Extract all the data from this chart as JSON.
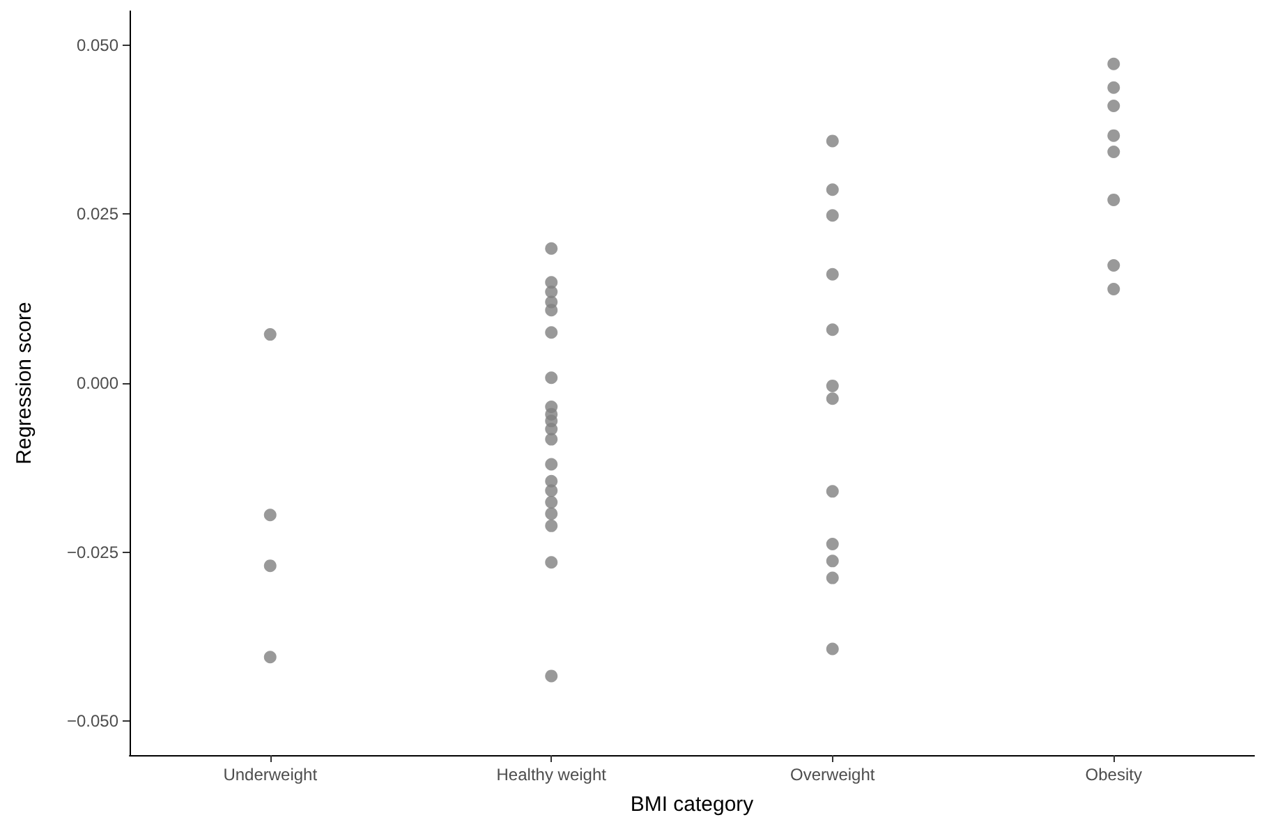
{
  "chart_data": {
    "type": "scatter",
    "xlabel": "BMI category",
    "ylabel": "Regression score",
    "categories": [
      "Underweight",
      "Healthy weight",
      "Overweight",
      "Obesity"
    ],
    "series": [
      {
        "color": "#7f7f7f",
        "x": [
          "Underweight",
          "Underweight",
          "Underweight",
          "Underweight",
          "Healthy weight",
          "Healthy weight",
          "Healthy weight",
          "Healthy weight",
          "Healthy weight",
          "Healthy weight",
          "Healthy weight",
          "Healthy weight",
          "Healthy weight",
          "Healthy weight",
          "Healthy weight",
          "Healthy weight",
          "Healthy weight",
          "Healthy weight",
          "Healthy weight",
          "Healthy weight",
          "Healthy weight",
          "Healthy weight",
          "Healthy weight",
          "Healthy weight",
          "Overweight",
          "Overweight",
          "Overweight",
          "Overweight",
          "Overweight",
          "Overweight",
          "Overweight",
          "Overweight",
          "Overweight",
          "Overweight",
          "Overweight",
          "Overweight",
          "Obesity",
          "Obesity",
          "Obesity",
          "Obesity",
          "Obesity",
          "Obesity",
          "Obesity",
          "Obesity"
        ],
        "values": [
          0.0072,
          -0.0195,
          -0.027,
          -0.0405,
          0.0199,
          0.0149,
          0.0135,
          0.012,
          0.0108,
          0.0075,
          0.0008,
          -0.0035,
          -0.0046,
          -0.0056,
          -0.0068,
          -0.0083,
          -0.012,
          -0.0145,
          -0.0159,
          -0.0176,
          -0.0193,
          -0.0211,
          -0.0265,
          -0.0433,
          0.0358,
          0.0286,
          0.0248,
          0.0161,
          0.0079,
          -0.0004,
          -0.0023,
          -0.016,
          -0.0238,
          -0.0263,
          -0.0288,
          -0.0393,
          0.0472,
          0.0437,
          0.041,
          0.0366,
          0.0342,
          0.0271,
          0.0174,
          0.0139
        ]
      }
    ],
    "ylim": [
      -0.055,
      0.055
    ],
    "yticks": [
      {
        "value": -0.05,
        "label": "−0.050"
      },
      {
        "value": -0.025,
        "label": "−0.025"
      },
      {
        "value": 0,
        "label": "0.000"
      },
      {
        "value": 0.025,
        "label": "0.025"
      },
      {
        "value": 0.05,
        "label": "0.050"
      }
    ],
    "grid": false,
    "marker": "circle"
  }
}
